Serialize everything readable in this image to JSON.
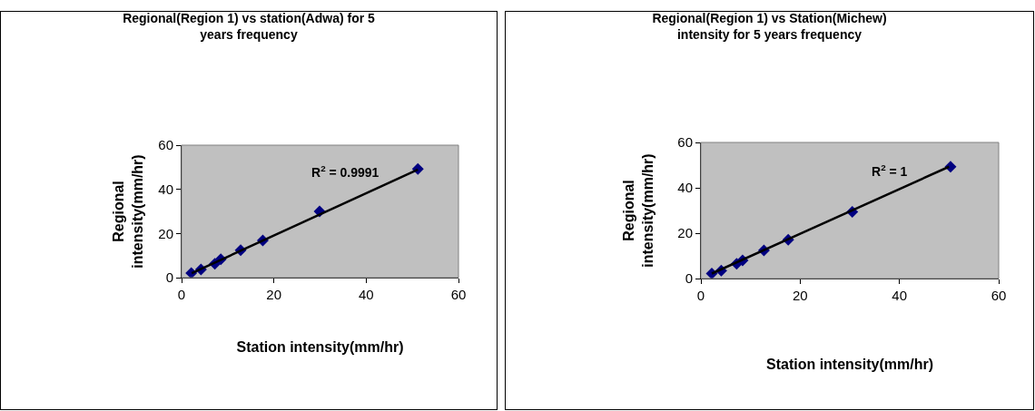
{
  "chart_data": [
    {
      "type": "scatter",
      "title": "Regional(Region 1) vs station(Adwa) for 5\nyears frequency",
      "xlabel": "Station intensity(mm/hr)",
      "ylabel": "Regional\nintensity(mm/hr)",
      "annotations": [
        "R$^{2}$ = 0.9991"
      ],
      "grid": false,
      "xlim": [
        0,
        60
      ],
      "xticks": [
        0,
        20,
        40,
        60
      ],
      "ylim": [
        0,
        60
      ],
      "yticks": [
        0,
        20,
        40,
        60
      ],
      "series": [
        {
          "color": "#000080",
          "marker": "diamond",
          "x": [
            2.1,
            4.2,
            7.2,
            8.5,
            12.8,
            17.6,
            29.9,
            51.2
          ],
          "values": [
            2.1,
            3.7,
            6.3,
            8.3,
            12.4,
            16.8,
            30.0,
            49.2
          ]
        },
        {
          "type": "line",
          "color": "#000000",
          "x": [
            2.2,
            51.2
          ],
          "values": [
            2,
            49
          ]
        }
      ]
    },
    {
      "type": "scatter",
      "title": "Regional(Region 1) vs Station(Michew)\nintensity for 5 years frequency",
      "xlabel": "Station intensity(mm/hr)",
      "ylabel": "Regional\nintensity(mm/hr)",
      "annotations": [
        "R$^{2}$ = 1"
      ],
      "grid": false,
      "xlim": [
        0,
        60
      ],
      "xticks": [
        0,
        20,
        40,
        60
      ],
      "ylim": [
        0,
        60
      ],
      "yticks": [
        0,
        20,
        40,
        60
      ],
      "series": [
        {
          "color": "#000080",
          "marker": "diamond",
          "x": [
            2.2,
            4.1,
            7.2,
            8.4,
            12.7,
            17.6,
            30.5,
            50.3
          ],
          "values": [
            2.2,
            3.5,
            6.5,
            8.0,
            12.4,
            17.1,
            29.4,
            49.3
          ]
        },
        {
          "type": "line",
          "color": "#000000",
          "x": [
            2.2,
            50
          ],
          "values": [
            2.2,
            49.3
          ]
        }
      ]
    }
  ]
}
